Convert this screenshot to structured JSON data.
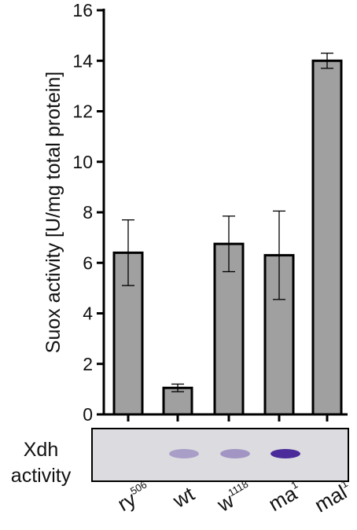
{
  "chart_data": {
    "type": "bar",
    "ylabel": "Suox activity [U/mg total protein]",
    "ylim": [
      0,
      16
    ],
    "yticks": [
      0,
      2,
      4,
      6,
      8,
      10,
      12,
      14,
      16
    ],
    "grid": false,
    "categories": [
      {
        "base": "ry",
        "sup": "506"
      },
      {
        "base": "wt",
        "sup": ""
      },
      {
        "base": "w",
        "sup": "1118"
      },
      {
        "base": "ma",
        "sup": "1"
      },
      {
        "base": "mal",
        "sup": "1"
      }
    ],
    "values": [
      6.4,
      1.05,
      6.75,
      6.3,
      14.0
    ],
    "error": [
      1.3,
      0.15,
      1.1,
      1.75,
      0.3
    ],
    "bar_color": "#a0a0a0",
    "edge_color": "#000000"
  },
  "blot": {
    "label_line1": "Xdh",
    "label_line2": "activity",
    "background": "#dcdce0",
    "band_intensity": [
      0,
      0.35,
      0.4,
      1.0,
      0
    ],
    "band_color": "#4b2a9a"
  }
}
